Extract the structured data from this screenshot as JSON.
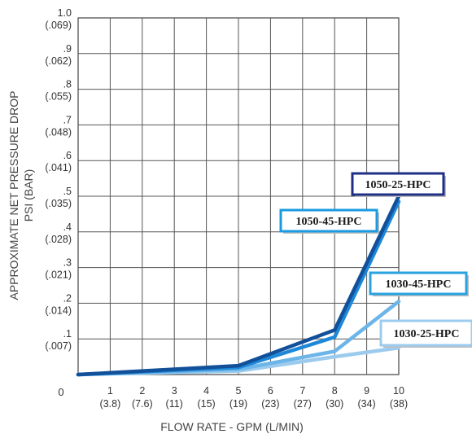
{
  "chart_data": {
    "type": "line",
    "title": "",
    "xlabel": "FLOW RATE - GPM (L/MIN)",
    "ylabel_line1": "APPROXIMATE NET PRESSURE DROP",
    "ylabel_line2": "PSI (BAR)",
    "xlim": [
      0,
      10
    ],
    "ylim": [
      0,
      1.0
    ],
    "grid": true,
    "zero_label": "0",
    "x_ticks": [
      {
        "value": 1,
        "gpm": "1",
        "lpm": "(3.8)"
      },
      {
        "value": 2,
        "gpm": "2",
        "lpm": "(7.6)"
      },
      {
        "value": 3,
        "gpm": "3",
        "lpm": "(11)"
      },
      {
        "value": 4,
        "gpm": "4",
        "lpm": "(15)"
      },
      {
        "value": 5,
        "gpm": "5",
        "lpm": "(19)"
      },
      {
        "value": 6,
        "gpm": "6",
        "lpm": "(23)"
      },
      {
        "value": 7,
        "gpm": "7",
        "lpm": "(27)"
      },
      {
        "value": 8,
        "gpm": "8",
        "lpm": "(30)"
      },
      {
        "value": 9,
        "gpm": "9",
        "lpm": "(34)"
      },
      {
        "value": 10,
        "gpm": "10",
        "lpm": "(38)"
      }
    ],
    "y_ticks": [
      {
        "value": 0.1,
        "psi": ".1",
        "bar": "(.007)"
      },
      {
        "value": 0.2,
        "psi": ".2",
        "bar": "(.014)"
      },
      {
        "value": 0.3,
        "psi": ".3",
        "bar": "(.021)"
      },
      {
        "value": 0.4,
        "psi": ".4",
        "bar": "(.028)"
      },
      {
        "value": 0.5,
        "psi": ".5",
        "bar": "(.035)"
      },
      {
        "value": 0.6,
        "psi": ".6",
        "bar": "(.041)"
      },
      {
        "value": 0.7,
        "psi": ".7",
        "bar": "(.048)"
      },
      {
        "value": 0.8,
        "psi": ".8",
        "bar": "(.055)"
      },
      {
        "value": 0.9,
        "psi": ".9",
        "bar": "(.062)"
      },
      {
        "value": 1.0,
        "psi": "1.0",
        "bar": "(.069)"
      }
    ],
    "series": [
      {
        "name": "1030-25-HPC",
        "color": "#9ccbee",
        "border": "#9ccbee",
        "x": [
          0,
          5,
          8,
          10
        ],
        "y": [
          0,
          0.01,
          0.05,
          0.075
        ]
      },
      {
        "name": "1030-45-HPC",
        "color": "#6cb5e8",
        "border": "#29a3e0",
        "x": [
          0,
          5,
          8,
          10
        ],
        "y": [
          0,
          0.015,
          0.065,
          0.205
        ]
      },
      {
        "name": "1050-45-HPC",
        "color": "#1e88d8",
        "border": "#1a9be0",
        "x": [
          0,
          5,
          8,
          10
        ],
        "y": [
          0,
          0.02,
          0.105,
          0.485
        ]
      },
      {
        "name": "1050-25-HPC",
        "color": "#12509a",
        "border": "#1f2f86",
        "x": [
          0,
          5,
          8,
          10
        ],
        "y": [
          0,
          0.025,
          0.125,
          0.5
        ]
      }
    ]
  }
}
